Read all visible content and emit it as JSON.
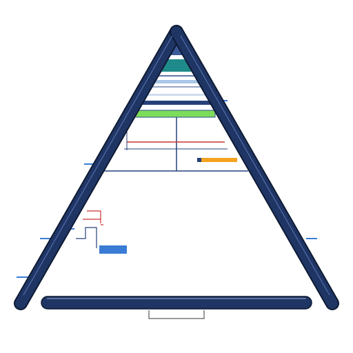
{
  "diagram": {
    "title": "",
    "caption_label": "",
    "side_label": ""
  },
  "colors": {
    "frame_navy": "#1f3564",
    "frame_outline": "#0e1a33",
    "teal_band": "#1f8a8a",
    "green_band": "#7ddc5a",
    "orange_bar": "#f4a21f",
    "red_line": "#cc3333",
    "accent_blue": "#3a7bd5",
    "wire_navy": "#26407a"
  },
  "bands": [
    {
      "name": "top-cap-band",
      "color": "#3b5a9a"
    },
    {
      "name": "teal-band",
      "color": "#1f8a8a"
    },
    {
      "name": "light-band",
      "color": "#a9c6e8"
    },
    {
      "name": "thin-band",
      "color": "#dfe9f5"
    },
    {
      "name": "green-band",
      "color": "#7ddc5a"
    }
  ]
}
